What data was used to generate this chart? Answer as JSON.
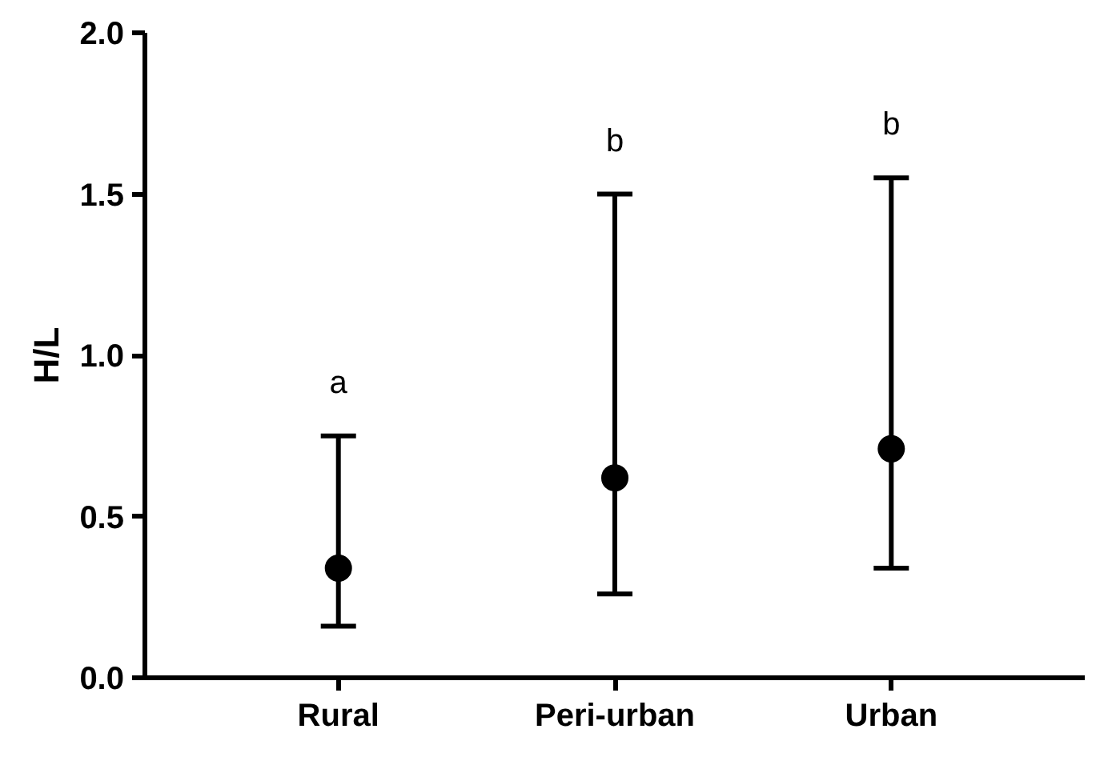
{
  "chart_data": {
    "type": "scatter",
    "ylabel": "H/L",
    "categories": [
      "Rural",
      "Peri-urban",
      "Urban"
    ],
    "values": [
      0.34,
      0.62,
      0.71
    ],
    "errors": [
      [
        0.16,
        0.75
      ],
      [
        0.26,
        1.5
      ],
      [
        0.34,
        1.55
      ]
    ],
    "color": "#000000",
    "marker": "circle",
    "grid": false,
    "ylim": [
      0,
      2
    ],
    "yticks": [
      {
        "value": 0,
        "label": "0.0"
      },
      0.5,
      {
        "value": 1,
        "label": "1.0"
      },
      1.5,
      {
        "value": 2,
        "label": "2.0"
      }
    ],
    "annotations": [
      "a",
      "b",
      "b"
    ]
  }
}
